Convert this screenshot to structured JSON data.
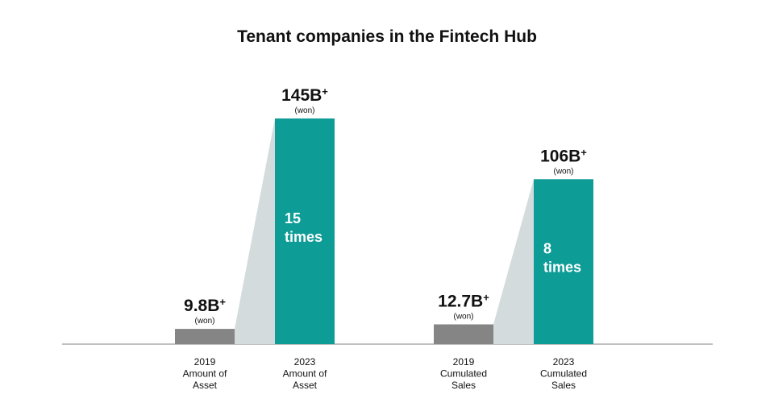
{
  "chart_data": {
    "type": "bar",
    "title": "Tenant companies in the Fintech Hub",
    "unit_label": "(won)",
    "value_suffix": "+",
    "colors": {
      "before": "#858585",
      "after": "#0e9c97",
      "growth_wedge": "#d3dbdc",
      "baseline": "#9a9a9a",
      "text": "#111111",
      "inner_text": "#ffffff"
    },
    "groups": [
      {
        "id": "asset",
        "ratio_lines": [
          "15",
          "times"
        ],
        "bars": [
          {
            "id": "2019-asset",
            "value": 9.8,
            "value_label": "9.8B",
            "category_lines": [
              "2019",
              "Amount of",
              "Asset"
            ],
            "role": "before"
          },
          {
            "id": "2023-asset",
            "value": 145,
            "value_label": "145B",
            "category_lines": [
              "2023",
              "Amount of",
              "Asset"
            ],
            "role": "after"
          }
        ]
      },
      {
        "id": "sales",
        "ratio_lines": [
          "8",
          "times"
        ],
        "bars": [
          {
            "id": "2019-sales",
            "value": 12.7,
            "value_label": "12.7B",
            "category_lines": [
              "2019",
              "Cumulated",
              "Sales"
            ],
            "role": "before"
          },
          {
            "id": "2023-sales",
            "value": 106,
            "value_label": "106B",
            "category_lines": [
              "2023",
              "Cumulated",
              "Sales"
            ],
            "role": "after"
          }
        ]
      }
    ]
  }
}
